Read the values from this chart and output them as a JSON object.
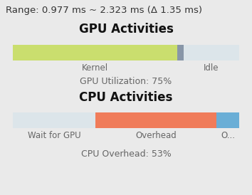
{
  "title_range": "Range: 0.977 ms ~ 2.323 ms (Δ 1.35 ms)",
  "gpu_title": "GPU Activities",
  "cpu_title": "CPU Activities",
  "background_color": "#eaeaea",
  "gpu_bar": {
    "segments": [
      0.725,
      0.03,
      0.245
    ],
    "colors": [
      "#cade6e",
      "#8896a8",
      "#dce5ea"
    ],
    "labels": [
      "Kernel",
      "",
      "Idle"
    ]
  },
  "gpu_utilization": "GPU Utilization: 75%",
  "cpu_bar": {
    "segments": [
      0.365,
      0.535,
      0.1
    ],
    "colors": [
      "#dce5ea",
      "#f07c5a",
      "#6aaed6"
    ],
    "labels": [
      "Wait for GPU",
      "Overhead",
      "O..."
    ]
  },
  "cpu_overhead": "CPU Overhead: 53%",
  "range_fontsize": 9.5,
  "section_title_fontsize": 12,
  "label_fontsize": 8.5,
  "util_fontsize": 9
}
